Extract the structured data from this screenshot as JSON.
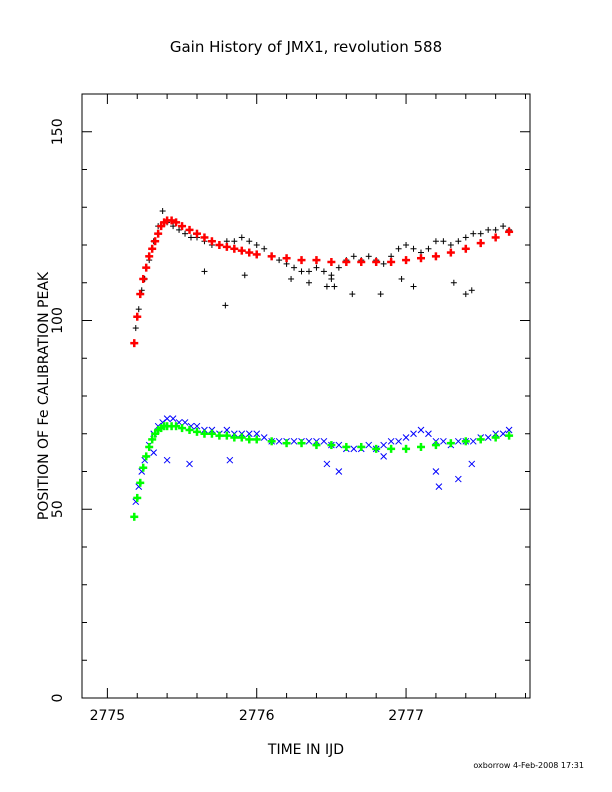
{
  "chart_data": {
    "type": "scatter",
    "title": "Gain History of JMX1, revolution 588",
    "xlabel": "TIME IN IJD",
    "ylabel": "POSITION OF Fe CALIBRATION PEAK",
    "xlim": [
      2774.83,
      2777.83
    ],
    "ylim": [
      0,
      160
    ],
    "xticks": [
      2775,
      2776,
      2777
    ],
    "yticks": [
      0,
      50,
      100,
      150
    ],
    "grid": false,
    "series": [
      {
        "marker": "plus",
        "color": "#000000",
        "x": [
          2775.19,
          2775.21,
          2775.23,
          2775.25,
          2775.28,
          2775.31,
          2775.34,
          2775.37,
          2775.4,
          2775.44,
          2775.48,
          2775.52,
          2775.56,
          2775.6,
          2775.65,
          2775.7,
          2775.75,
          2775.8,
          2775.85,
          2775.9,
          2775.95,
          2776.0,
          2776.05,
          2776.1,
          2776.15,
          2776.2,
          2776.25,
          2776.3,
          2776.35,
          2776.4,
          2776.45,
          2776.5,
          2776.55,
          2776.6,
          2776.65,
          2776.7,
          2776.75,
          2776.8,
          2776.85,
          2776.9,
          2776.95,
          2777.0,
          2777.05,
          2777.1,
          2777.15,
          2777.2,
          2777.25,
          2777.3,
          2777.35,
          2777.4,
          2777.45,
          2777.5,
          2777.55,
          2777.6,
          2777.65,
          2777.69,
          2775.79,
          2775.65,
          2775.92,
          2776.23,
          2776.35,
          2776.47,
          2776.5,
          2776.52,
          2776.64,
          2776.83,
          2776.97,
          2777.05,
          2777.32,
          2777.4,
          2777.44
        ],
        "y": [
          98,
          103,
          108,
          111,
          116,
          121,
          125,
          129,
          126,
          125,
          124,
          123,
          122,
          122,
          121,
          120,
          120,
          121,
          121,
          122,
          121,
          120,
          119,
          117,
          116,
          115,
          114,
          113,
          113,
          114,
          113,
          112,
          114,
          116,
          117,
          116,
          117,
          116,
          115,
          117,
          119,
          120,
          119,
          118,
          119,
          121,
          121,
          120,
          121,
          122,
          123,
          123,
          124,
          124,
          125,
          124,
          104,
          113,
          112,
          111,
          110,
          109,
          111,
          109,
          107,
          107,
          111,
          109,
          110,
          107,
          108
        ]
      },
      {
        "marker": "plus",
        "color": "#ff0000",
        "x": [
          2775.18,
          2775.2,
          2775.22,
          2775.24,
          2775.26,
          2775.28,
          2775.3,
          2775.32,
          2775.34,
          2775.36,
          2775.38,
          2775.4,
          2775.43,
          2775.46,
          2775.5,
          2775.55,
          2775.6,
          2775.65,
          2775.7,
          2775.75,
          2775.8,
          2775.85,
          2775.9,
          2775.95,
          2776.0,
          2776.1,
          2776.2,
          2776.3,
          2776.4,
          2776.5,
          2776.6,
          2776.7,
          2776.8,
          2776.9,
          2777.0,
          2777.1,
          2777.2,
          2777.3,
          2777.4,
          2777.5,
          2777.6,
          2777.69
        ],
        "y": [
          94,
          101,
          107,
          111,
          114,
          117,
          119,
          121,
          123,
          125,
          126,
          126.5,
          126.5,
          126,
          125,
          124,
          123,
          122,
          121,
          120,
          119.5,
          119,
          118.5,
          118,
          117.5,
          117,
          116.5,
          116,
          116,
          115.5,
          115.5,
          115.5,
          115.5,
          115.5,
          116,
          116.5,
          117,
          118,
          119,
          120.5,
          122,
          123.5
        ]
      },
      {
        "marker": "cross",
        "color": "#0000ff",
        "x": [
          2775.19,
          2775.21,
          2775.23,
          2775.25,
          2775.28,
          2775.31,
          2775.34,
          2775.37,
          2775.4,
          2775.44,
          2775.48,
          2775.52,
          2775.56,
          2775.6,
          2775.65,
          2775.7,
          2775.75,
          2775.8,
          2775.85,
          2775.9,
          2775.95,
          2776.0,
          2776.05,
          2776.1,
          2776.15,
          2776.2,
          2776.25,
          2776.3,
          2776.35,
          2776.4,
          2776.45,
          2776.5,
          2776.55,
          2776.6,
          2776.65,
          2776.7,
          2776.75,
          2776.8,
          2776.85,
          2776.9,
          2776.95,
          2777.0,
          2777.05,
          2777.1,
          2777.15,
          2777.2,
          2777.25,
          2777.3,
          2777.35,
          2777.4,
          2777.45,
          2777.5,
          2777.55,
          2777.6,
          2777.65,
          2777.69,
          2775.31,
          2775.4,
          2775.55,
          2775.82,
          2776.47,
          2776.55,
          2776.85,
          2777.2,
          2777.22,
          2777.35,
          2777.44
        ],
        "y": [
          52,
          56,
          60,
          63,
          67,
          70,
          72,
          73,
          74,
          74,
          73,
          73,
          72,
          72,
          71,
          71,
          70,
          71,
          70,
          70,
          70,
          70,
          69,
          68,
          68,
          68,
          68,
          68,
          68,
          68,
          68,
          67,
          67,
          66,
          66,
          66,
          67,
          66,
          67,
          68,
          68,
          69,
          70,
          71,
          70,
          68,
          68,
          67,
          68,
          68,
          68,
          69,
          69,
          70,
          70,
          71,
          65,
          63,
          62,
          63,
          62,
          60,
          64,
          60,
          56,
          58,
          62
        ]
      },
      {
        "marker": "plus",
        "color": "#00ff00",
        "x": [
          2775.18,
          2775.2,
          2775.22,
          2775.24,
          2775.26,
          2775.28,
          2775.3,
          2775.32,
          2775.34,
          2775.36,
          2775.38,
          2775.4,
          2775.43,
          2775.46,
          2775.5,
          2775.55,
          2775.6,
          2775.65,
          2775.7,
          2775.75,
          2775.8,
          2775.85,
          2775.9,
          2775.95,
          2776.0,
          2776.1,
          2776.2,
          2776.3,
          2776.4,
          2776.5,
          2776.6,
          2776.7,
          2776.8,
          2776.9,
          2777.0,
          2777.1,
          2777.2,
          2777.3,
          2777.4,
          2777.5,
          2777.6,
          2777.69
        ],
        "y": [
          48,
          53,
          57,
          61,
          64,
          66.5,
          68.5,
          70,
          71,
          71.5,
          72,
          72,
          72,
          72,
          71.5,
          71,
          70.5,
          70,
          70,
          69.5,
          69.5,
          69,
          69,
          68.5,
          68.5,
          68,
          67.5,
          67.5,
          67,
          67,
          66.5,
          66.5,
          66,
          66,
          66,
          66.5,
          67,
          67.5,
          68,
          68.5,
          69,
          69.5
        ]
      }
    ]
  },
  "footer": "oxborrow  4-Feb-2008 17:31"
}
